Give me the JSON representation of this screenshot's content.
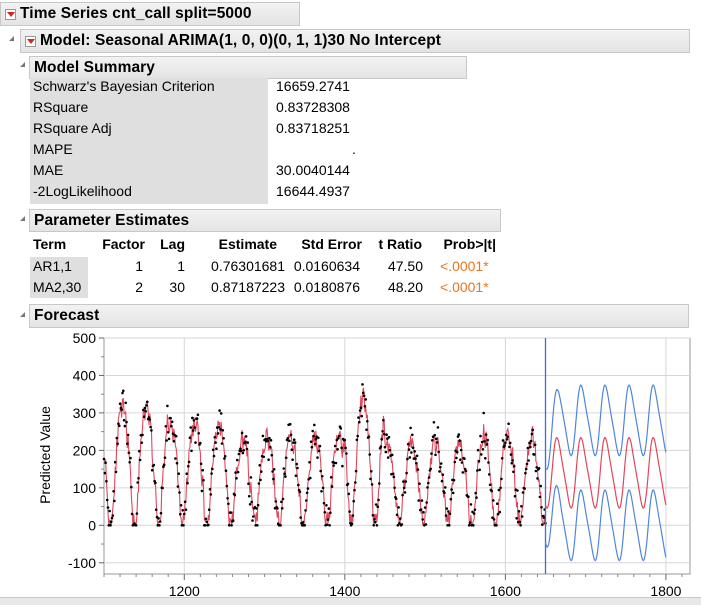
{
  "title": "Time Series cnt_call split=5000",
  "model_title": "Model: Seasonal ARIMA(1, 0, 0)(0, 1, 1)30 No Intercept",
  "model_summary": {
    "header": "Model Summary",
    "rows": [
      {
        "label": "Schwarz's Bayesian Criterion",
        "value": "16659.2741"
      },
      {
        "label": "RSquare",
        "value": "0.83728308"
      },
      {
        "label": "RSquare Adj",
        "value": "0.83718251"
      },
      {
        "label": "MAPE",
        "value": "."
      },
      {
        "label": "MAE",
        "value": "30.0040144"
      },
      {
        "label": "-2LogLikelihood",
        "value": "16644.4937"
      }
    ]
  },
  "parameter_estimates": {
    "header": "Parameter Estimates",
    "columns": [
      "Term",
      "Factor",
      "Lag",
      "Estimate",
      "Std Error",
      "t Ratio",
      "Prob>|t|"
    ],
    "rows": [
      [
        "AR1,1",
        "1",
        "1",
        "0.76301681",
        "0.0160634",
        "47.50",
        "<.0001*"
      ],
      [
        "MA2,30",
        "2",
        "30",
        "0.87187223",
        "0.0180876",
        "48.20",
        "<.0001*"
      ]
    ]
  },
  "forecast": {
    "header": "Forecast",
    "ylabel": "Predicted Value"
  },
  "colors": {
    "fit": "#e0475a",
    "bounds": "#4f86db",
    "points": "#000000",
    "prob": "#e8761c",
    "ref_line": "#3b6fd4"
  },
  "chart_data": {
    "type": "line",
    "title": "",
    "xlabel": "",
    "ylabel": "Predicted Value",
    "xlim": [
      1100,
      1830
    ],
    "ylim": [
      -130,
      500
    ],
    "x_ticks": [
      1200,
      1400,
      1600,
      1800
    ],
    "y_ticks": [
      -100,
      0,
      100,
      200,
      300,
      400,
      500
    ],
    "forecast_start": 1650,
    "grid": true,
    "season_period": 30,
    "history_end": 1650,
    "forecast_end": 1800,
    "series": [
      {
        "name": "",
        "role": "actual",
        "style": "points"
      },
      {
        "name": "",
        "role": "predicted",
        "style": "line"
      },
      {
        "name": "",
        "role": "upper_confidence",
        "style": "line"
      },
      {
        "name": "",
        "role": "lower_confidence",
        "style": "line"
      }
    ]
  }
}
